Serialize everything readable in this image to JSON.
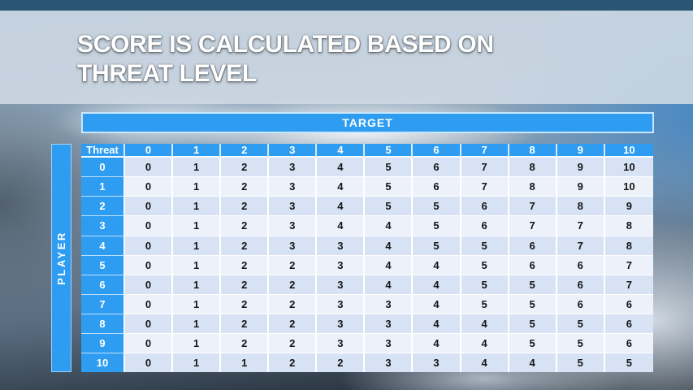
{
  "slide": {
    "title_lines": [
      "SCORE IS CALCULATED BASED ON",
      "THREAT LEVEL"
    ]
  },
  "matrix": {
    "target_label": "TARGET",
    "player_label": "PLAYER",
    "corner_label": "Threat",
    "column_headers": [
      "0",
      "1",
      "2",
      "3",
      "4",
      "5",
      "6",
      "7",
      "8",
      "9",
      "10"
    ],
    "rows": [
      {
        "label": "0",
        "values": [
          0,
          1,
          2,
          3,
          4,
          5,
          6,
          7,
          8,
          9,
          10
        ]
      },
      {
        "label": "1",
        "values": [
          0,
          1,
          2,
          3,
          4,
          5,
          6,
          7,
          8,
          9,
          10
        ]
      },
      {
        "label": "2",
        "values": [
          0,
          1,
          2,
          3,
          4,
          5,
          5,
          6,
          7,
          8,
          9
        ]
      },
      {
        "label": "3",
        "values": [
          0,
          1,
          2,
          3,
          4,
          4,
          5,
          6,
          7,
          7,
          8
        ]
      },
      {
        "label": "4",
        "values": [
          0,
          1,
          2,
          3,
          3,
          4,
          5,
          5,
          6,
          7,
          8
        ]
      },
      {
        "label": "5",
        "values": [
          0,
          1,
          2,
          2,
          3,
          4,
          4,
          5,
          6,
          6,
          7
        ]
      },
      {
        "label": "6",
        "values": [
          0,
          1,
          2,
          2,
          3,
          4,
          4,
          5,
          5,
          6,
          7
        ]
      },
      {
        "label": "7",
        "values": [
          0,
          1,
          2,
          2,
          3,
          3,
          4,
          5,
          5,
          6,
          6
        ]
      },
      {
        "label": "8",
        "values": [
          0,
          1,
          2,
          2,
          3,
          3,
          4,
          4,
          5,
          5,
          6
        ]
      },
      {
        "label": "9",
        "values": [
          0,
          1,
          2,
          2,
          3,
          3,
          4,
          4,
          5,
          5,
          6
        ]
      },
      {
        "label": "10",
        "values": [
          0,
          1,
          1,
          2,
          2,
          3,
          3,
          4,
          4,
          5,
          5
        ]
      }
    ]
  },
  "colors": {
    "accent_blue": "#2E9CF0",
    "row_band_dark": "#D8E2F5",
    "row_band_light": "#EDF1FA",
    "top_strip": "#2A5474",
    "title_band": "#CDD8E2",
    "title_text": "#FFFFFF",
    "cell_text": "#151515"
  }
}
